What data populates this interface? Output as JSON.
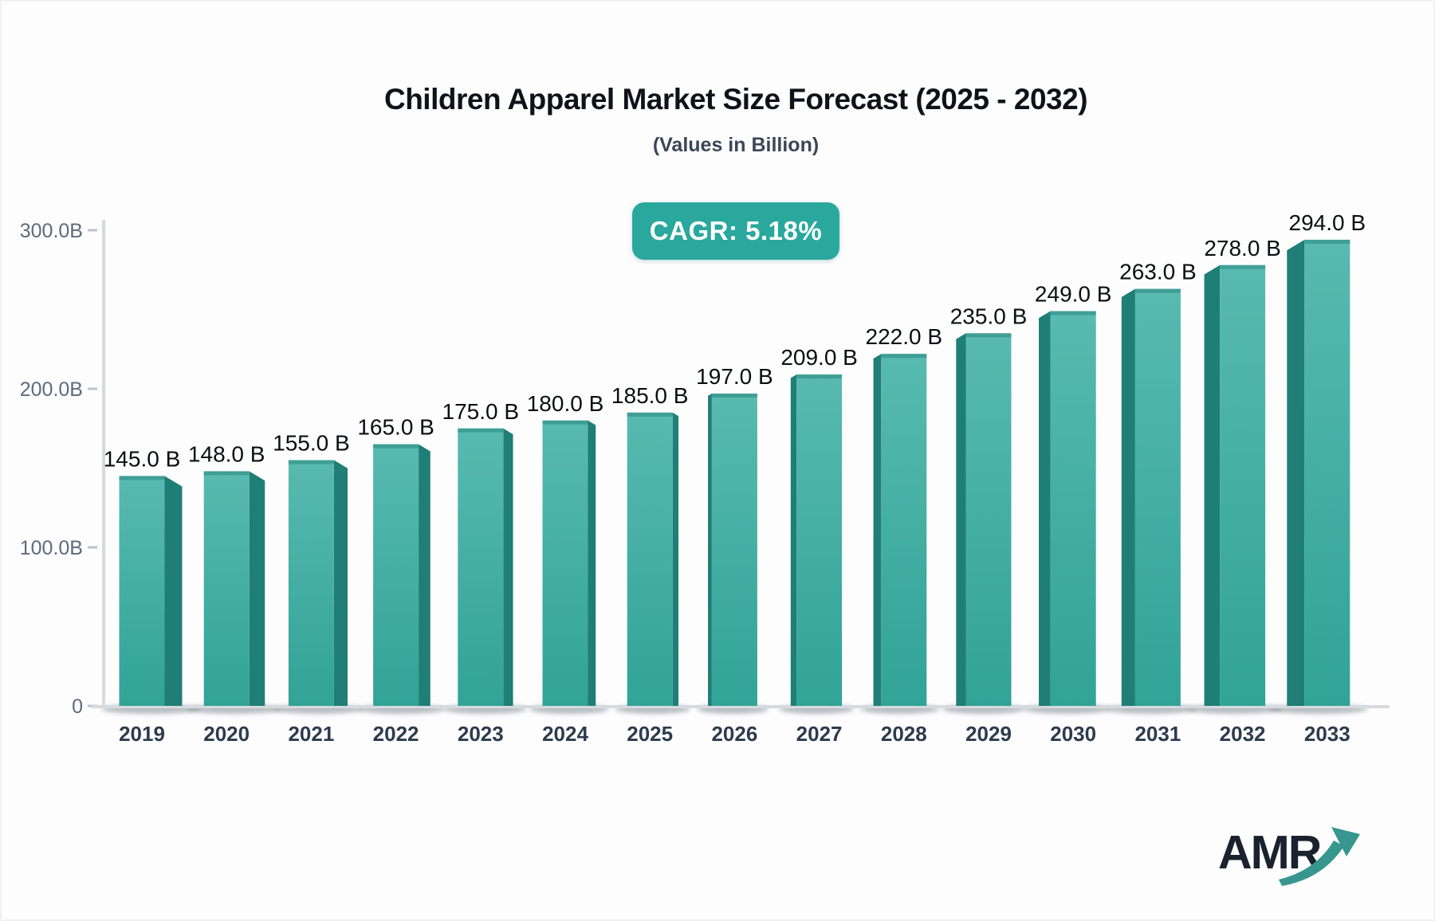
{
  "header": {
    "title": "Children Apparel Market Size Forecast (2025 - 2032)",
    "subtitle": "(Values in Billion)"
  },
  "badge": {
    "label": "CAGR: 5.18%",
    "bg_color": "#2aa89d",
    "text_color": "#ffffff"
  },
  "logo": {
    "text": "AMR",
    "text_color": "#1a222e",
    "arrow_color": "#37968d"
  },
  "chart_data": {
    "type": "bar",
    "title": "Children Apparel Market Size Forecast (2025 - 2032)",
    "subtitle": "(Values in Billion)",
    "annotation": "CAGR: 5.18%",
    "categories": [
      "2019",
      "2020",
      "2021",
      "2022",
      "2023",
      "2024",
      "2025",
      "2026",
      "2027",
      "2028",
      "2029",
      "2030",
      "2031",
      "2032",
      "2033"
    ],
    "values": [
      145,
      148,
      155,
      165,
      175,
      180,
      185,
      197,
      209,
      222,
      235,
      249,
      263,
      278,
      294
    ],
    "value_labels": [
      "145.0 B",
      "148.0 B",
      "155.0 B",
      "165.0 B",
      "175.0 B",
      "180.0 B",
      "185.0 B",
      "197.0 B",
      "209.0 B",
      "222.0 B",
      "235.0 B",
      "249.0 B",
      "263.0 B",
      "278.0 B",
      "294.0 B"
    ],
    "xlabel": "",
    "ylabel": "",
    "ylim": [
      0,
      300
    ],
    "grid": false,
    "legend": null,
    "y_ticks": [
      {
        "label": "300.0B",
        "value": 300
      },
      {
        "label": "200.0B",
        "value": 200
      },
      {
        "label": "100.0B",
        "value": 100
      },
      {
        "label": "0",
        "value": 0
      }
    ],
    "colors": {
      "bar_front_top": "#58bab0",
      "bar_front_bottom": "#31a397",
      "bar_top_edge": "#3f9f95",
      "bar_side": "#1f7e75",
      "axis_line": "#d6dade",
      "tick_mark": "#aab3bb",
      "y_tick_text": "#5d6b7a",
      "category_text": "#2d3b4d",
      "value_text": "#0b0e12",
      "shadow": "#44565f"
    }
  }
}
